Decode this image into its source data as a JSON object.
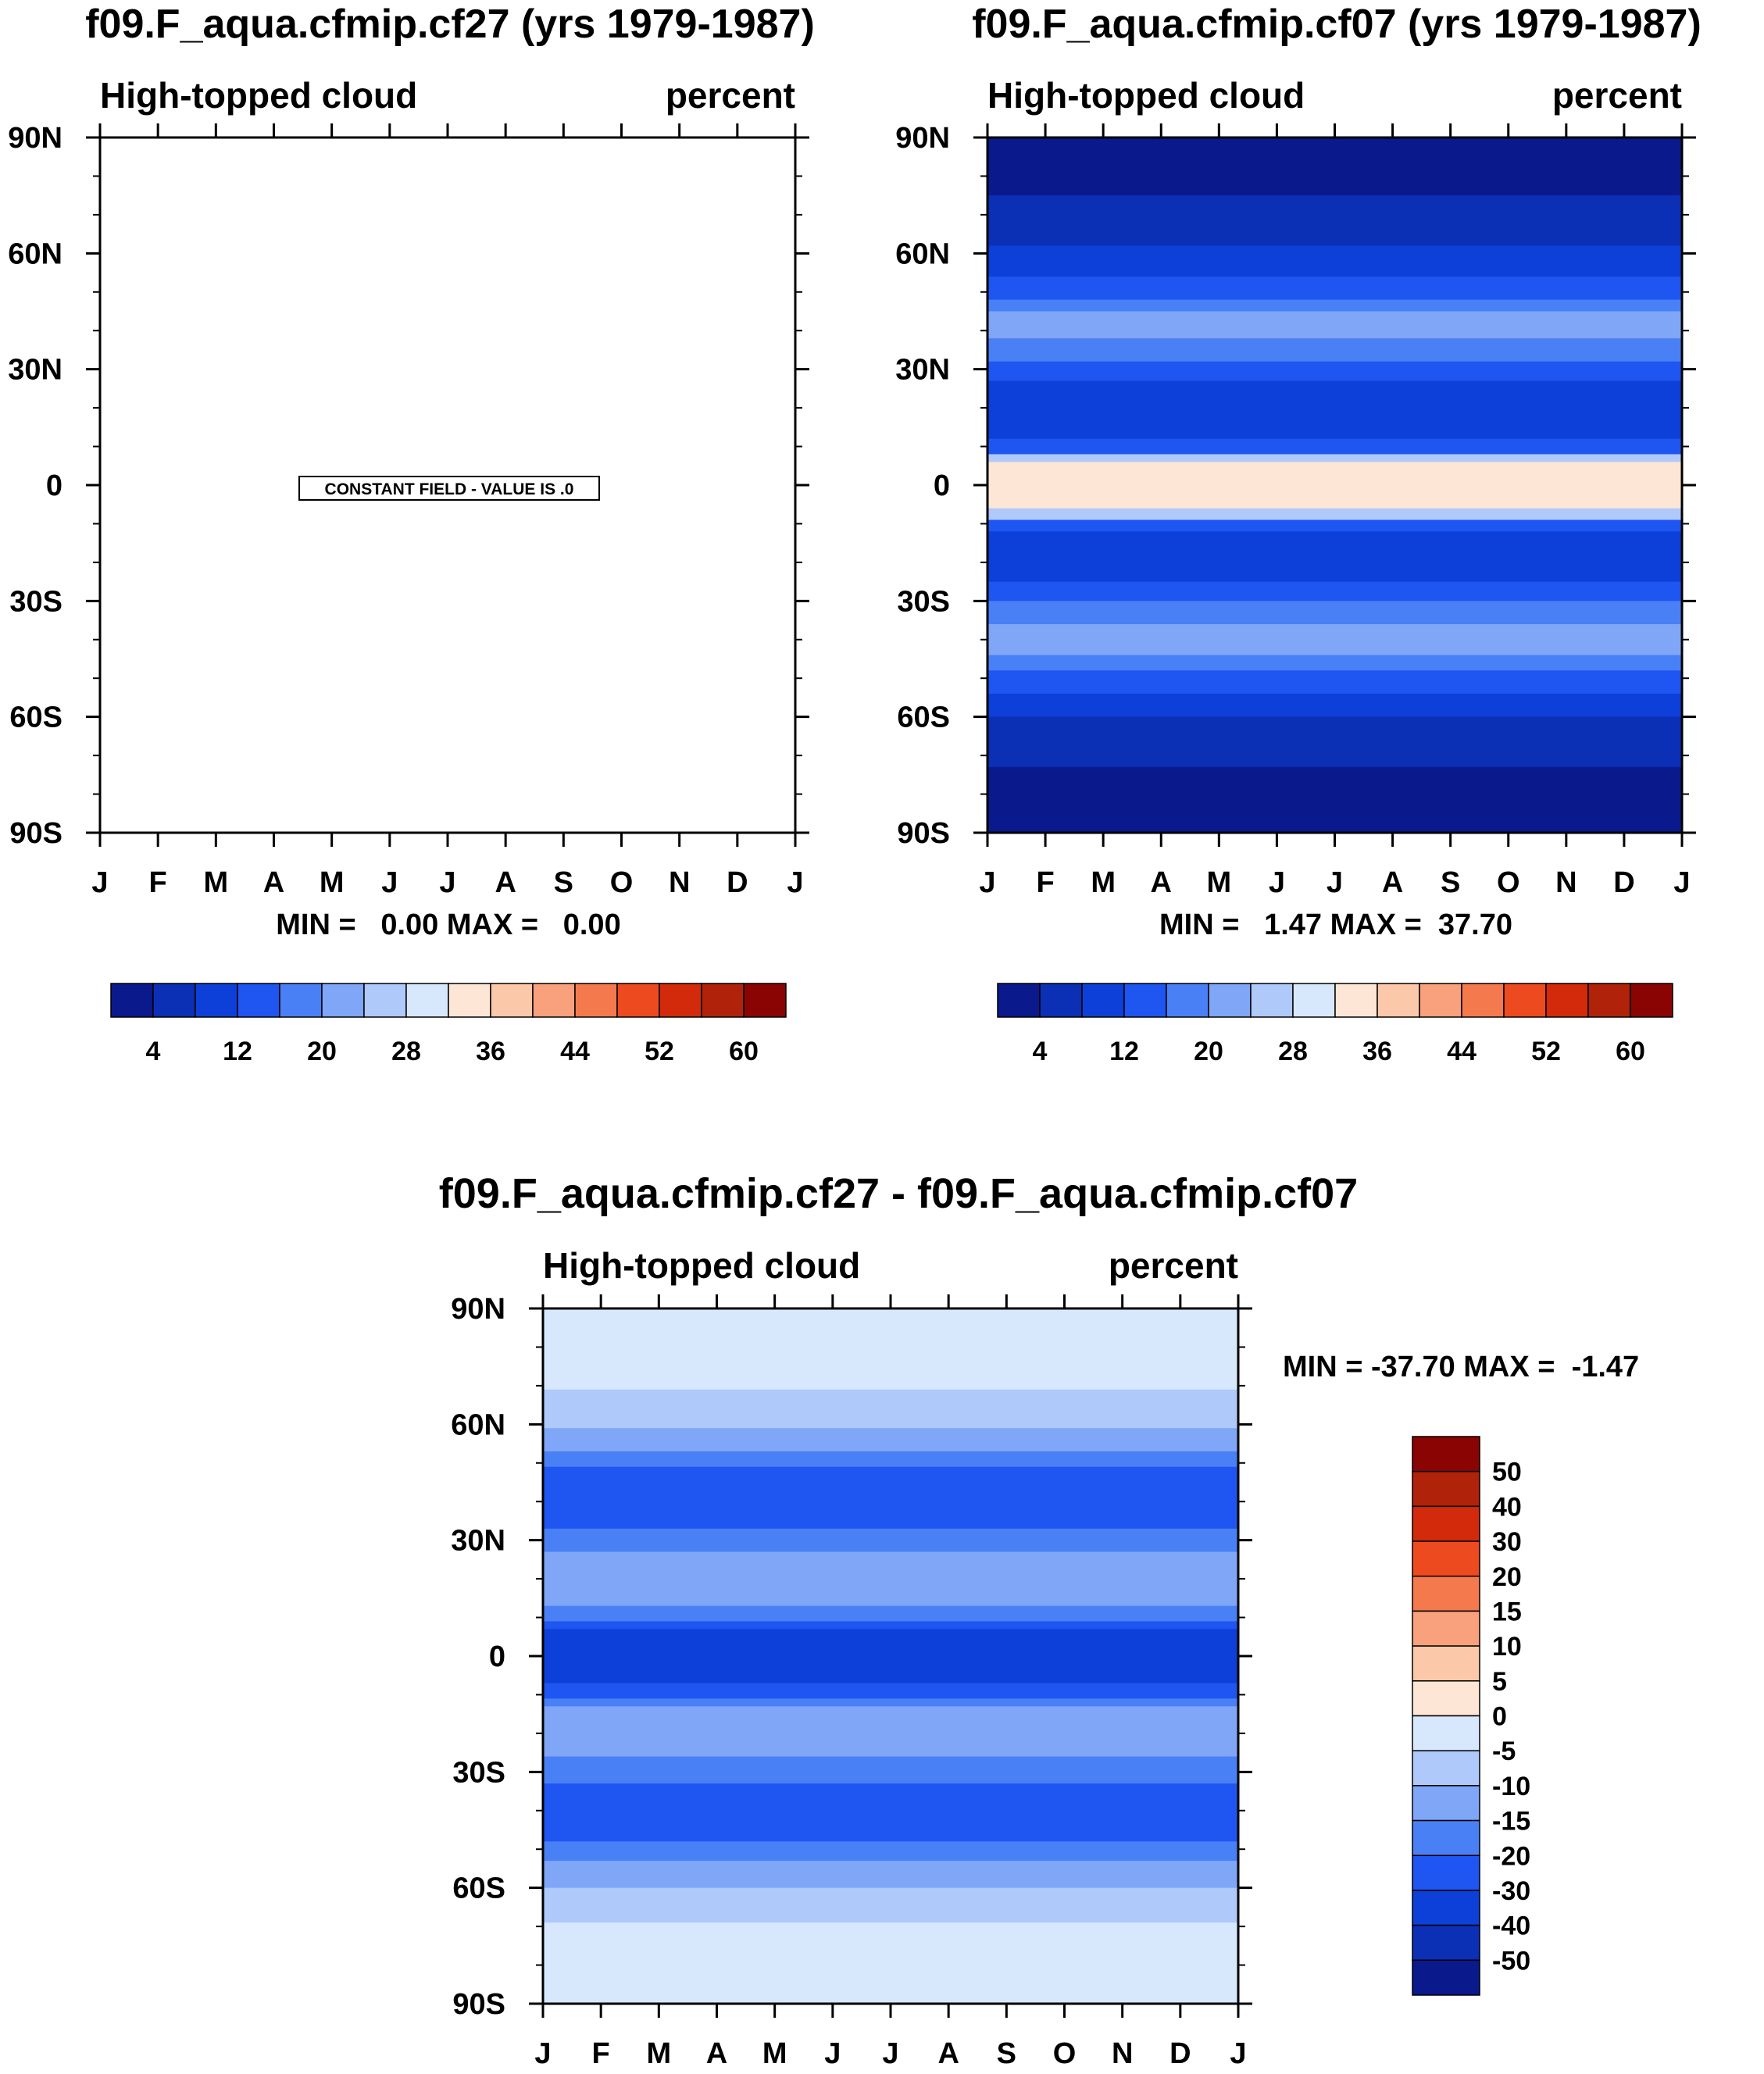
{
  "chart_data": [
    {
      "type": "heatmap",
      "id": "p1",
      "title": "f09.F_aqua.cfmip.cf27 (yrs 1979-1987)",
      "left_string": "High-topped cloud",
      "right_string": "percent",
      "x": [
        "J",
        "F",
        "M",
        "A",
        "M",
        "J",
        "J",
        "A",
        "S",
        "O",
        "N",
        "D",
        "J"
      ],
      "y_ticks": [
        "90N",
        "60N",
        "30N",
        "0",
        "30S",
        "60S",
        "90S"
      ],
      "ylim": [
        -90,
        90
      ],
      "stats": "MIN =   0.00 MAX =   0.00",
      "constant_field_label": "CONSTANT FIELD - VALUE IS .0",
      "colorbar": {
        "orientation": "horizontal",
        "colors": [
          "#0a1a8c",
          "#0b2fb5",
          "#0c40d8",
          "#1f55f0",
          "#4a80f5",
          "#7fa6f7",
          "#b0c9fb",
          "#d8e8fc",
          "#fde6d6",
          "#fcc8aa",
          "#f9a07c",
          "#f47a4e",
          "#ee4a20",
          "#d22a0a",
          "#b0220a",
          "#8b0404"
        ],
        "tick_labels": [
          "4",
          "12",
          "20",
          "28",
          "36",
          "44",
          "52",
          "60"
        ]
      }
    },
    {
      "type": "heatmap",
      "id": "p2",
      "title": "f09.F_aqua.cfmip.cf07 (yrs 1979-1987)",
      "left_string": "High-topped cloud",
      "right_string": "percent",
      "x": [
        "J",
        "F",
        "M",
        "A",
        "M",
        "J",
        "J",
        "A",
        "S",
        "O",
        "N",
        "D",
        "J"
      ],
      "y_ticks": [
        "90N",
        "60N",
        "30N",
        "0",
        "30S",
        "60S",
        "90S"
      ],
      "ylim": [
        -90,
        90
      ],
      "stats": "MIN =   1.47 MAX =  37.70",
      "bands": [
        {
          "lat_top": 90,
          "lat_bottom": 75,
          "color": "#0a1a8c"
        },
        {
          "lat_top": 75,
          "lat_bottom": 62,
          "color": "#0b2fb5"
        },
        {
          "lat_top": 62,
          "lat_bottom": 54,
          "color": "#0c40d8"
        },
        {
          "lat_top": 54,
          "lat_bottom": 48,
          "color": "#1f55f0"
        },
        {
          "lat_top": 48,
          "lat_bottom": 45,
          "color": "#4a80f5"
        },
        {
          "lat_top": 45,
          "lat_bottom": 38,
          "color": "#7fa6f7"
        },
        {
          "lat_top": 38,
          "lat_bottom": 32,
          "color": "#4a80f5"
        },
        {
          "lat_top": 32,
          "lat_bottom": 27,
          "color": "#1f55f0"
        },
        {
          "lat_top": 27,
          "lat_bottom": 12,
          "color": "#0c40d8"
        },
        {
          "lat_top": 12,
          "lat_bottom": 8,
          "color": "#1f55f0"
        },
        {
          "lat_top": 8,
          "lat_bottom": 6,
          "color": "#b0c9fb"
        },
        {
          "lat_top": 6,
          "lat_bottom": -6,
          "color": "#fde6d6"
        },
        {
          "lat_top": -6,
          "lat_bottom": -9,
          "color": "#b0c9fb"
        },
        {
          "lat_top": -9,
          "lat_bottom": -12,
          "color": "#1f55f0"
        },
        {
          "lat_top": -12,
          "lat_bottom": -25,
          "color": "#0c40d8"
        },
        {
          "lat_top": -25,
          "lat_bottom": -30,
          "color": "#1f55f0"
        },
        {
          "lat_top": -30,
          "lat_bottom": -36,
          "color": "#4a80f5"
        },
        {
          "lat_top": -36,
          "lat_bottom": -44,
          "color": "#7fa6f7"
        },
        {
          "lat_top": -44,
          "lat_bottom": -48,
          "color": "#4a80f5"
        },
        {
          "lat_top": -48,
          "lat_bottom": -54,
          "color": "#1f55f0"
        },
        {
          "lat_top": -54,
          "lat_bottom": -60,
          "color": "#0c40d8"
        },
        {
          "lat_top": -60,
          "lat_bottom": -73,
          "color": "#0b2fb5"
        },
        {
          "lat_top": -73,
          "lat_bottom": -90,
          "color": "#0a1a8c"
        }
      ],
      "colorbar": {
        "orientation": "horizontal",
        "colors": [
          "#0a1a8c",
          "#0b2fb5",
          "#0c40d8",
          "#1f55f0",
          "#4a80f5",
          "#7fa6f7",
          "#b0c9fb",
          "#d8e8fc",
          "#fde6d6",
          "#fcc8aa",
          "#f9a07c",
          "#f47a4e",
          "#ee4a20",
          "#d22a0a",
          "#b0220a",
          "#8b0404"
        ],
        "tick_labels": [
          "4",
          "12",
          "20",
          "28",
          "36",
          "44",
          "52",
          "60"
        ]
      }
    },
    {
      "type": "heatmap",
      "id": "p3",
      "title": "f09.F_aqua.cfmip.cf27 - f09.F_aqua.cfmip.cf07",
      "left_string": "High-topped cloud",
      "right_string": "percent",
      "x": [
        "J",
        "F",
        "M",
        "A",
        "M",
        "J",
        "J",
        "A",
        "S",
        "O",
        "N",
        "D",
        "J"
      ],
      "y_ticks": [
        "90N",
        "60N",
        "30N",
        "0",
        "30S",
        "60S",
        "90S"
      ],
      "ylim": [
        -90,
        90
      ],
      "stats": "MIN = -37.70 MAX =  -1.47",
      "bands": [
        {
          "lat_top": 90,
          "lat_bottom": 69,
          "color": "#d8e8fc"
        },
        {
          "lat_top": 69,
          "lat_bottom": 59,
          "color": "#b0c9fb"
        },
        {
          "lat_top": 59,
          "lat_bottom": 53,
          "color": "#7fa6f7"
        },
        {
          "lat_top": 53,
          "lat_bottom": 49,
          "color": "#4a80f5"
        },
        {
          "lat_top": 49,
          "lat_bottom": 33,
          "color": "#1f55f0"
        },
        {
          "lat_top": 33,
          "lat_bottom": 27,
          "color": "#4a80f5"
        },
        {
          "lat_top": 27,
          "lat_bottom": 13,
          "color": "#7fa6f7"
        },
        {
          "lat_top": 13,
          "lat_bottom": 9,
          "color": "#4a80f5"
        },
        {
          "lat_top": 9,
          "lat_bottom": 7,
          "color": "#1f55f0"
        },
        {
          "lat_top": 7,
          "lat_bottom": -7,
          "color": "#0c40d8"
        },
        {
          "lat_top": -7,
          "lat_bottom": -11,
          "color": "#1f55f0"
        },
        {
          "lat_top": -11,
          "lat_bottom": -13,
          "color": "#4a80f5"
        },
        {
          "lat_top": -13,
          "lat_bottom": -26,
          "color": "#7fa6f7"
        },
        {
          "lat_top": -26,
          "lat_bottom": -33,
          "color": "#4a80f5"
        },
        {
          "lat_top": -33,
          "lat_bottom": -48,
          "color": "#1f55f0"
        },
        {
          "lat_top": -48,
          "lat_bottom": -53,
          "color": "#4a80f5"
        },
        {
          "lat_top": -53,
          "lat_bottom": -60,
          "color": "#7fa6f7"
        },
        {
          "lat_top": -60,
          "lat_bottom": -69,
          "color": "#b0c9fb"
        },
        {
          "lat_top": -69,
          "lat_bottom": -90,
          "color": "#d8e8fc"
        }
      ],
      "colorbar": {
        "orientation": "vertical",
        "colors": [
          "#8b0404",
          "#b0220a",
          "#d22a0a",
          "#ee4a20",
          "#f47a4e",
          "#f9a07c",
          "#fcc8aa",
          "#fde6d6",
          "#d8e8fc",
          "#b0c9fb",
          "#7fa6f7",
          "#4a80f5",
          "#1f55f0",
          "#0c40d8",
          "#0b2fb5",
          "#0a1a8c"
        ],
        "tick_labels": [
          "50",
          "40",
          "30",
          "20",
          "15",
          "10",
          "5",
          "0",
          "-5",
          "-10",
          "-15",
          "-20",
          "-30",
          "-40",
          "-50"
        ]
      }
    }
  ]
}
